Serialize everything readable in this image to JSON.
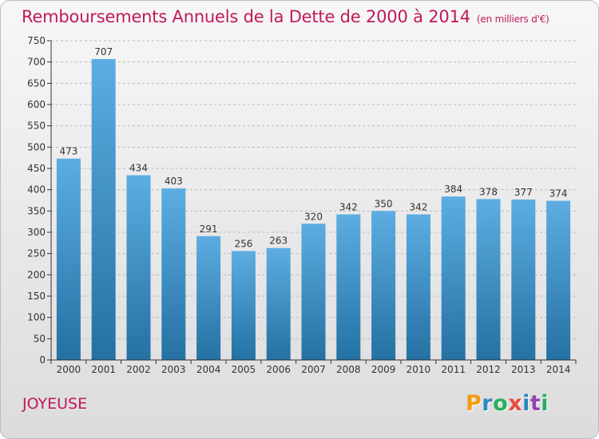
{
  "chart_data": {
    "type": "bar",
    "title": "Remboursements Annuels de la Dette de 2000 à 2014",
    "unit_label": "(en milliers d'€)",
    "categories": [
      "2000",
      "2001",
      "2002",
      "2003",
      "2004",
      "2005",
      "2006",
      "2007",
      "2008",
      "2009",
      "2010",
      "2011",
      "2012",
      "2013",
      "2014"
    ],
    "values": [
      473,
      707,
      434,
      403,
      291,
      256,
      263,
      320,
      342,
      350,
      342,
      384,
      378,
      377,
      374
    ],
    "ylim": [
      0,
      750
    ],
    "yticks": [
      0,
      50,
      100,
      150,
      200,
      250,
      300,
      350,
      400,
      450,
      500,
      550,
      600,
      650,
      700,
      750
    ],
    "grid": true,
    "xlabel": "",
    "ylabel": ""
  },
  "commune": "JOYEUSE",
  "logo": {
    "letters": [
      "P",
      "r",
      "o",
      "x",
      "i",
      "t",
      "i"
    ],
    "colors": [
      "#f39c12",
      "#2e86c1",
      "#27ae60",
      "#e74c3c",
      "#2e86c1",
      "#8e44ad",
      "#27ae60"
    ]
  },
  "colors": {
    "title": "#c2185b",
    "bar_top": "#5dade2",
    "bar_bottom": "#2471a3",
    "axis": "#333333",
    "grid": "#bbbbbb"
  }
}
